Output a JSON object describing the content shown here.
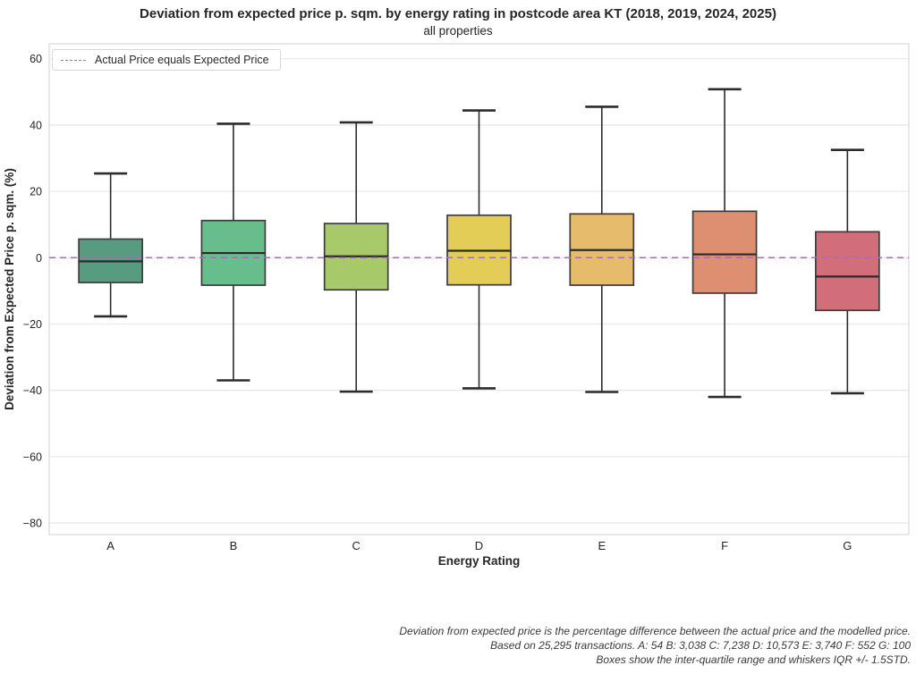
{
  "header": {
    "title": "Deviation from expected price p. sqm. by energy rating in postcode area KT (2018, 2019, 2024, 2025)",
    "subtitle": "all properties"
  },
  "legend": {
    "label": "Actual Price equals Expected Price"
  },
  "footnote": {
    "lines": [
      "Deviation from expected price is the percentage difference between the actual price and the modelled price.",
      "Based on 25,295 transactions. A: 54 B: 3,038 C: 7,238 D: 10,573 E: 3,740 F: 552 G: 100",
      "Boxes show the inter-quartile range and whiskers IQR +/- 1.5STD."
    ]
  },
  "chart_data": {
    "type": "boxplot",
    "title": "Deviation from expected price p. sqm. by energy rating in postcode area KT (2018, 2019, 2024, 2025)",
    "subtitle": "all properties",
    "xlabel": "Energy Rating",
    "ylabel": "Deviation from Expected Price p. sqm. (%)",
    "ylim": [
      -83.5,
      64.5
    ],
    "yticks": [
      60,
      40,
      20,
      0,
      -20,
      -40,
      -60,
      -80
    ],
    "grid": "horizontal",
    "legend_position": "upper left",
    "reference_line": {
      "y": 0,
      "style": "dashed",
      "color": "#a96bb5",
      "label": "Actual Price equals Expected Price"
    },
    "categories": [
      "A",
      "B",
      "C",
      "D",
      "E",
      "F",
      "G"
    ],
    "series": [
      {
        "rating": "A",
        "color": "#579b80",
        "whisker_low": -17.7,
        "q1": -7.5,
        "median": -1.1,
        "q3": 5.6,
        "whisker_high": 25.4,
        "count": "54"
      },
      {
        "rating": "B",
        "color": "#67bd8b",
        "whisker_low": -37.0,
        "q1": -8.3,
        "median": 1.4,
        "q3": 11.2,
        "whisker_high": 40.4,
        "count": "3,038"
      },
      {
        "rating": "C",
        "color": "#a7c96a",
        "whisker_low": -40.4,
        "q1": -9.7,
        "median": 0.4,
        "q3": 10.3,
        "whisker_high": 40.8,
        "count": "7,238"
      },
      {
        "rating": "D",
        "color": "#e3cd57",
        "whisker_low": -39.4,
        "q1": -8.2,
        "median": 2.1,
        "q3": 12.8,
        "whisker_high": 44.4,
        "count": "10,573"
      },
      {
        "rating": "E",
        "color": "#e7bb6c",
        "whisker_low": -40.5,
        "q1": -8.3,
        "median": 2.3,
        "q3": 13.2,
        "whisker_high": 45.5,
        "count": "3,740"
      },
      {
        "rating": "F",
        "color": "#de8e71",
        "whisker_low": -42.0,
        "q1": -10.7,
        "median": 1.0,
        "q3": 14.0,
        "whisker_high": 50.8,
        "count": "552"
      },
      {
        "rating": "G",
        "color": "#d26e79",
        "whisker_low": -40.9,
        "q1": -15.9,
        "median": -5.7,
        "q3": 7.8,
        "whisker_high": 32.5,
        "count": "100"
      }
    ],
    "total_transactions": "25,295"
  },
  "colors": {
    "grid": "#e7e7e7",
    "spine": "#d8d8d8",
    "box_edge": "#3d3d3d",
    "whisker": "#2b2b2b",
    "text": "#262626",
    "reference": "#a96bb5"
  }
}
